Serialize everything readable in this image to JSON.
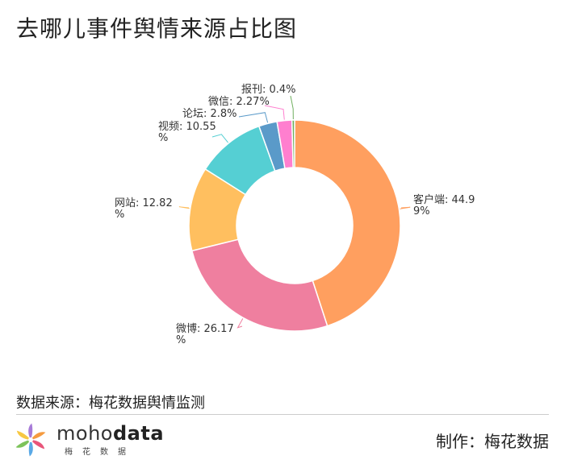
{
  "title": "去哪儿事件舆情来源占比图",
  "chart_data": {
    "type": "pie",
    "variant": "donut",
    "series": [
      {
        "name": "客户端",
        "value": 44.99,
        "label_lines": [
          "客户端: 44.9",
          "9%"
        ],
        "color": "#FF9F5F"
      },
      {
        "name": "微博",
        "value": 26.17,
        "label_lines": [
          "微博: 26.17",
          "%"
        ],
        "color": "#EF7F9F"
      },
      {
        "name": "网站",
        "value": 12.82,
        "label_lines": [
          "网站: 12.82",
          "%"
        ],
        "color": "#FFBF5F"
      },
      {
        "name": "视频",
        "value": 10.55,
        "label_lines": [
          "视频: 10.55",
          "%"
        ],
        "color": "#55CFD3"
      },
      {
        "name": "论坛",
        "value": 2.8,
        "label_lines": [
          "论坛: 2.8%"
        ],
        "color": "#5A9AC9"
      },
      {
        "name": "微信",
        "value": 2.27,
        "label_lines": [
          "微信: 2.27%"
        ],
        "color": "#FF7FCF"
      },
      {
        "name": "报刊",
        "value": 0.4,
        "label_lines": [
          "报刊: 0.4%"
        ],
        "color": "#6FAF5F"
      }
    ]
  },
  "source_text": "数据来源：梅花数据舆情监测",
  "brand": {
    "name_part1": "moho",
    "name_part2": "data",
    "subtitle": "梅花数据"
  },
  "credit": "制作：梅花数据",
  "logo_colors": [
    "#F59B3F",
    "#E8557A",
    "#5AA9E6",
    "#7DC35B",
    "#F7C843",
    "#A77BD8"
  ]
}
